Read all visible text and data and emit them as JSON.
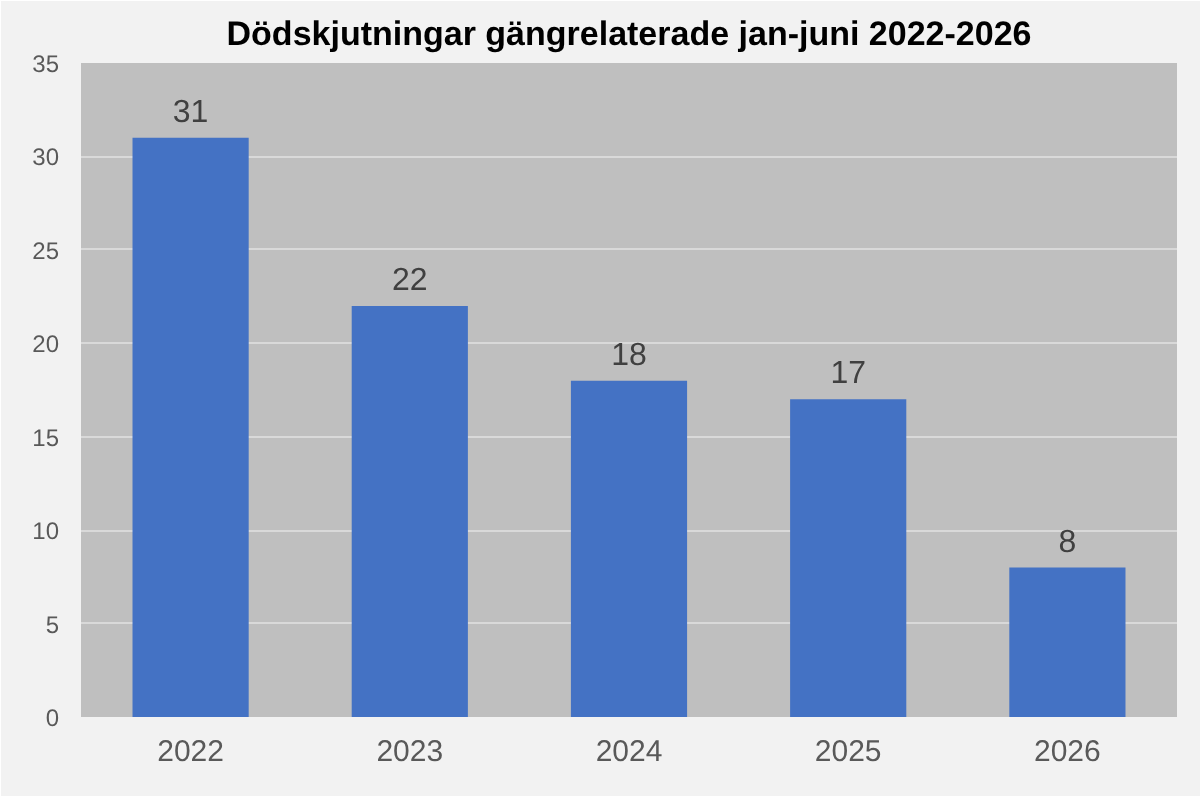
{
  "chart_data": {
    "type": "bar",
    "title": "Dödskjutningar gängrelaterade jan-juni 2022-2026",
    "categories": [
      "2022",
      "2023",
      "2024",
      "2025",
      "2026"
    ],
    "values": [
      31,
      22,
      18,
      17,
      8
    ],
    "color": "#4472c4",
    "ylim": [
      0,
      35
    ],
    "yticks": [
      0,
      5,
      10,
      15,
      20,
      25,
      30,
      35
    ],
    "grid": "y",
    "data_labels": true
  }
}
